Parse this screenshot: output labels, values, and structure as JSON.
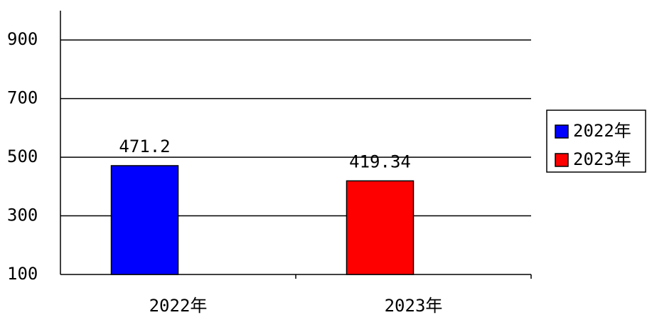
{
  "chart_data": {
    "type": "bar",
    "categories": [
      "2022年",
      "2023年"
    ],
    "values": [
      471.2,
      419.34
    ],
    "colors": [
      "#0000ff",
      "#ff0000"
    ],
    "ylim": [
      100,
      1000
    ],
    "yticks": [
      100,
      300,
      500,
      700,
      900
    ],
    "grid": true,
    "legend": "right"
  }
}
